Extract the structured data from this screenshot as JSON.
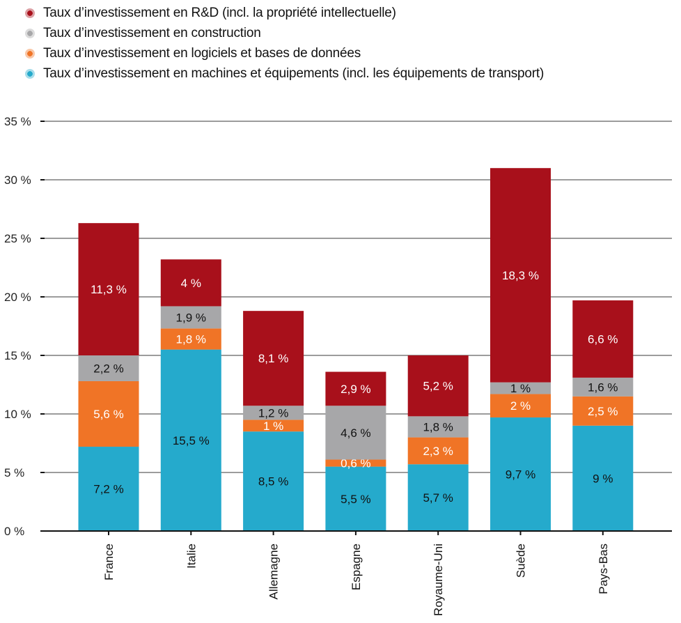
{
  "chart_data": {
    "type": "bar",
    "stacked": true,
    "categories": [
      "France",
      "Italie",
      "Allemagne",
      "Espagne",
      "Royaume-Uni",
      "Suède",
      "Pays-Bas"
    ],
    "series": [
      {
        "name": "Taux d’investissement en machines et équipements (incl. les équipements de transport)",
        "color": "#25aacc",
        "values": [
          7.2,
          15.5,
          8.5,
          5.5,
          5.7,
          9.7,
          9
        ],
        "labels": [
          "7,2 %",
          "15,5 %",
          "8,5 %",
          "5,5 %",
          "5,7 %",
          "9,7 %",
          "9 %"
        ]
      },
      {
        "name": "Taux d’investissement en logiciels et bases de données",
        "color": "#f07426",
        "values": [
          5.6,
          1.8,
          1,
          0.6,
          2.3,
          2,
          2.5
        ],
        "labels": [
          "5,6 %",
          "1,8 %",
          "1 %",
          "0,6 %",
          "2,3 %",
          "2 %",
          "2,5 %"
        ]
      },
      {
        "name": "Taux d’investissement en construction",
        "color": "#a7a7a9",
        "values": [
          2.2,
          1.9,
          1.2,
          4.6,
          1.8,
          1,
          1.6
        ],
        "labels": [
          "2,2 %",
          "1,9 %",
          "1,2 %",
          "4,6 %",
          "1,8 %",
          "1 %",
          "1,6 %"
        ]
      },
      {
        "name": "Taux d’investissement en R&D (incl. la propriété intellectuelle)",
        "color": "#a8101b",
        "values": [
          11.3,
          4,
          8.1,
          2.9,
          5.2,
          18.3,
          6.6
        ],
        "labels": [
          "11,3 %",
          "4 %",
          "8,1 %",
          "2,9 %",
          "5,2 %",
          "18,3 %",
          "6,6 %"
        ]
      }
    ],
    "legend_order": [
      3,
      2,
      1,
      0
    ],
    "legend_placement": "top-left",
    "ylim": [
      0,
      35
    ],
    "yticks": [
      0,
      5,
      10,
      15,
      20,
      25,
      30,
      35
    ],
    "ytick_labels": [
      "0 %",
      "5 %",
      "10 %",
      "15 %",
      "20 %",
      "25 %",
      "30 %",
      "35 %"
    ],
    "grid": true
  }
}
